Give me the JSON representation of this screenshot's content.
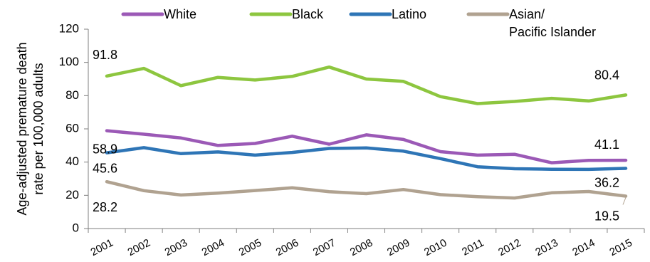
{
  "chart_data": {
    "type": "line",
    "ylabel_lines": [
      "Age-adjusted premature death",
      "rate per 100,000 adults"
    ],
    "ylim": [
      0,
      120
    ],
    "yticks": [
      "0",
      "20",
      "40",
      "60",
      "80",
      "100",
      "120"
    ],
    "categories": [
      "2001",
      "2002",
      "2003",
      "2004",
      "2005",
      "2006",
      "2007",
      "2008",
      "2009",
      "2010",
      "2011",
      "2012",
      "2013",
      "2014",
      "2015"
    ],
    "legend_position": "top",
    "series": [
      {
        "name": "White",
        "color": "#9b59b6",
        "values": [
          58.9,
          56.8,
          54.5,
          50.0,
          51.2,
          55.6,
          50.8,
          56.4,
          53.6,
          46.3,
          44.2,
          44.7,
          39.6,
          41.0,
          41.1
        ]
      },
      {
        "name": "Black",
        "color": "#8dc63f",
        "values": [
          91.8,
          96.4,
          86.0,
          91.0,
          89.4,
          91.6,
          97.2,
          90.0,
          88.6,
          79.4,
          75.2,
          76.5,
          78.4,
          76.8,
          80.4
        ]
      },
      {
        "name": "Latino",
        "color": "#2e75b6",
        "values": [
          45.6,
          48.7,
          45.1,
          46.1,
          44.2,
          45.8,
          48.2,
          48.5,
          46.6,
          42.1,
          37.2,
          36.0,
          35.7,
          35.6,
          36.2
        ]
      },
      {
        "name": "Asian/ Pacific Islander",
        "name_lines": [
          "Asian/",
          "Pacific Islander"
        ],
        "color": "#b0a290",
        "values": [
          28.2,
          22.8,
          20.2,
          21.3,
          22.9,
          24.5,
          22.2,
          21.0,
          23.5,
          20.4,
          19.2,
          18.4,
          21.5,
          22.3,
          19.5
        ]
      }
    ],
    "data_labels": [
      {
        "series": "Black",
        "index": 0,
        "text": "91.8"
      },
      {
        "series": "White",
        "index": 0,
        "text": "58.9"
      },
      {
        "series": "Latino",
        "index": 0,
        "text": "45.6"
      },
      {
        "series": "Asian/ Pacific Islander",
        "index": 0,
        "text": "28.2"
      },
      {
        "series": "Black",
        "index": 14,
        "text": "80.4"
      },
      {
        "series": "White",
        "index": 14,
        "text": "41.1"
      },
      {
        "series": "Latino",
        "index": 14,
        "text": "36.2"
      },
      {
        "series": "Asian/ Pacific Islander",
        "index": 14,
        "text": "19.5"
      }
    ]
  }
}
